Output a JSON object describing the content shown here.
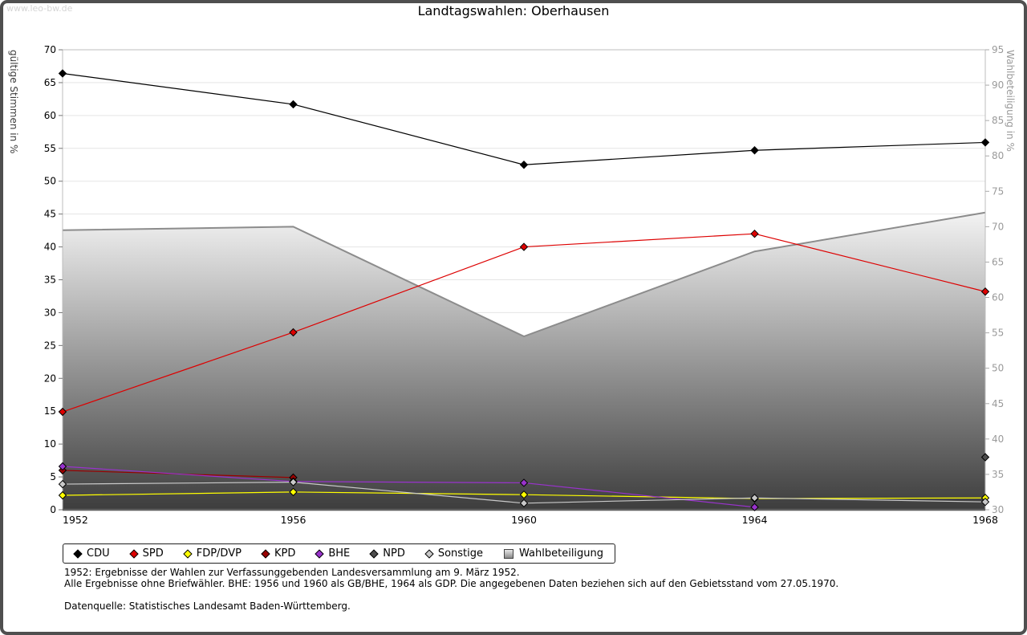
{
  "watermark": "www.leo-bw.de",
  "title": "Landtagswahlen: Oberhausen",
  "footnotes": {
    "line1": "1952: Ergebnisse der Wahlen zur Verfassunggebenden Landesversammlung am 9. März 1952.",
    "line2": "Alle Ergebnisse ohne Briefwähler. BHE: 1956 und 1960 als GB/BHE, 1964 als GDP. Die angegebenen Daten beziehen sich auf den Gebietsstand vom 27.05.1970.",
    "line3": "Datenquelle: Statistisches Landesamt Baden-Württemberg."
  },
  "chart_data": {
    "type": "line",
    "title": "Landtagswahlen: Oberhausen",
    "x_categories": [
      "1952",
      "1956",
      "1960",
      "1964",
      "1968"
    ],
    "left_axis": {
      "label": "gültige Stimmen in %",
      "min": 0,
      "max": 70,
      "tick_step": 5
    },
    "right_axis": {
      "label": "Wahlbeteiligung in %",
      "min": 30,
      "max": 95,
      "tick_step": 5
    },
    "grid": true,
    "legend_position": "bottom",
    "series": [
      {
        "name": "CDU",
        "color": "#000000",
        "axis": "left",
        "values": [
          66.4,
          61.7,
          52.5,
          54.7,
          55.9
        ]
      },
      {
        "name": "SPD",
        "color": "#dd0000",
        "axis": "left",
        "values": [
          14.9,
          27.0,
          40.0,
          42.0,
          33.2
        ]
      },
      {
        "name": "FDP/DVP",
        "color": "#ffff00",
        "axis": "left",
        "values": [
          2.2,
          2.7,
          2.3,
          1.7,
          1.8
        ]
      },
      {
        "name": "KPD",
        "color": "#990000",
        "axis": "left",
        "values": [
          6.0,
          4.9,
          null,
          null,
          null
        ]
      },
      {
        "name": "BHE",
        "color": "#9933cc",
        "axis": "left",
        "values": [
          6.6,
          4.3,
          4.1,
          0.4,
          null
        ]
      },
      {
        "name": "NPD",
        "color": "#4d4d4d",
        "axis": "left",
        "values": [
          null,
          null,
          null,
          null,
          8.0
        ]
      },
      {
        "name": "Sonstige",
        "color": "#c9c9c9",
        "axis": "left",
        "values": [
          3.9,
          4.2,
          1.0,
          1.8,
          1.2
        ]
      }
    ],
    "area_series": {
      "name": "Wahlbeteiligung",
      "axis": "right",
      "values": [
        69.5,
        70.0,
        54.5,
        66.5,
        72.0
      ],
      "fill_top": "#f3f3f3",
      "fill_bottom": "#3d3d3d",
      "stroke": "#8c8c8c"
    }
  }
}
